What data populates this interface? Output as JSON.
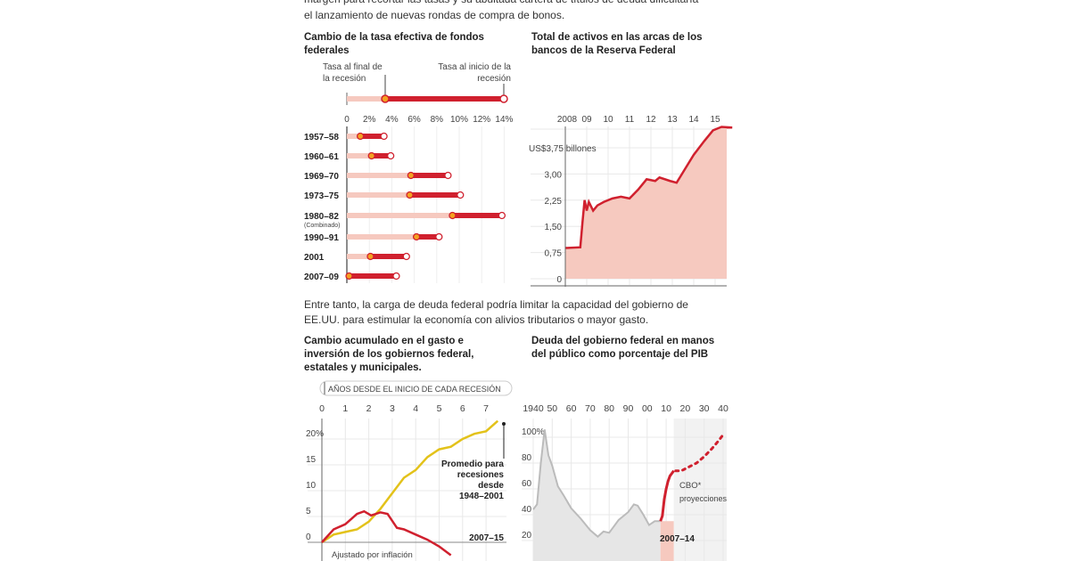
{
  "intro": {
    "line1": "margen para recortar las tasas y su abultada cartera de títulos de deuda dificultaría",
    "line2": "el lanzamiento de nuevas rondas de compra de bonos."
  },
  "middle": {
    "line1": "Entre tanto, la carga de deuda federal podría limitar la capacidad del gobierno de",
    "line2": "EE.UU. para estimular la economía con alivios tributarios o mayor gasto."
  },
  "colors": {
    "red": "#d0202e",
    "pink": "#f6c9bf",
    "gray": "#e6e6e6",
    "yellow": "#e3c21a"
  },
  "chart_data": [
    {
      "type": "dumbbell",
      "title": "Cambio de la tasa efectiva de fondos federales",
      "legend": {
        "end_label": "Tasa al final de la recesión",
        "start_label": "Tasa al inicio de la recesión"
      },
      "xticks": [
        "0",
        "2%",
        "4%",
        "6%",
        "8%",
        "10%",
        "12%",
        "14%"
      ],
      "xlim": [
        0,
        14
      ],
      "rows": [
        {
          "label": "1957–58",
          "end": 1.2,
          "start": 3.3
        },
        {
          "label": "1960–61",
          "end": 2.2,
          "start": 3.9
        },
        {
          "label": "1969–70",
          "end": 5.7,
          "start": 9.0
        },
        {
          "label": "1973–75",
          "end": 5.6,
          "start": 10.1
        },
        {
          "label": "1980–82",
          "sublabel": "(Combinado)",
          "end": 9.4,
          "start": 13.8
        },
        {
          "label": "1990–91",
          "end": 6.2,
          "start": 8.2
        },
        {
          "label": "2001",
          "end": 2.1,
          "start": 5.3
        },
        {
          "label": "2007–09",
          "end": 0.2,
          "start": 4.4
        }
      ]
    },
    {
      "type": "area",
      "title": "Total de activos en las arcas de los bancos de la Reserva Federal",
      "xticks": [
        "2008",
        "09",
        "10",
        "11",
        "12",
        "13",
        "14",
        "15"
      ],
      "yticks": [
        "0",
        "0,75",
        "1,50",
        "2,25",
        "3,00",
        "US$3,75 billones"
      ],
      "ylim": [
        0,
        4.3
      ],
      "x": [
        2008.0,
        2008.7,
        2008.8,
        2008.9,
        2009.0,
        2009.1,
        2009.3,
        2009.5,
        2009.8,
        2010.2,
        2010.6,
        2011.0,
        2011.4,
        2011.8,
        2012.2,
        2012.4,
        2012.9,
        2013.2,
        2013.6,
        2014.0,
        2014.5,
        2014.9,
        2015.3,
        2015.8
      ],
      "y": [
        0.88,
        0.9,
        1.6,
        2.25,
        1.95,
        2.2,
        1.95,
        2.1,
        2.2,
        2.3,
        2.35,
        2.3,
        2.55,
        2.85,
        2.8,
        2.9,
        2.8,
        2.75,
        3.15,
        3.55,
        3.95,
        4.25,
        4.35,
        4.33
      ]
    },
    {
      "type": "line",
      "title": "Cambio acumulado en el gasto e inversión de los gobiernos federal, estatales y municipales.",
      "xlabel": "AÑOS DESDE EL INICIO DE CADA RECESIÓN",
      "xticks": [
        "0",
        "1",
        "2",
        "3",
        "4",
        "5",
        "6",
        "7"
      ],
      "yticks": [
        "0",
        "5",
        "10",
        "15",
        "20%"
      ],
      "ylim": [
        -2,
        24
      ],
      "note": "Ajustado por inflación",
      "series": [
        {
          "name": "Promedio para recesiones desde 1948–2001",
          "color": "#e3c21a",
          "x": [
            0,
            0.5,
            1,
            1.5,
            2,
            2.5,
            3,
            3.5,
            4,
            4.5,
            5,
            5.5,
            6,
            6.5,
            7,
            7.5
          ],
          "y": [
            0,
            1.5,
            2,
            2.5,
            4,
            6.5,
            9.5,
            12.5,
            14,
            16.5,
            18,
            18.5,
            20,
            21,
            21.5,
            23.5
          ]
        },
        {
          "name": "2007–15",
          "color": "#d0202e",
          "x": [
            0,
            0.5,
            1,
            1.5,
            1.8,
            2.1,
            2.5,
            2.8,
            3.2,
            3.5,
            4,
            4.5,
            5,
            5.5
          ],
          "y": [
            0,
            2.5,
            3.5,
            5.5,
            6,
            5.2,
            5.8,
            5.5,
            2.8,
            2.5,
            1.5,
            0.5,
            -0.8,
            -2.5
          ]
        }
      ]
    },
    {
      "type": "area",
      "title": "Deuda del gobierno federal en manos del público como porcentaje del PIB",
      "xticks": [
        "1940",
        "50",
        "60",
        "70",
        "80",
        "90",
        "00",
        "10",
        "20",
        "30",
        "40"
      ],
      "yticks": [
        "20",
        "40",
        "60",
        "80",
        "100%"
      ],
      "ylim": [
        10,
        110
      ],
      "historical": {
        "x": [
          1940,
          1942,
          1944,
          1946,
          1948,
          1950,
          1953,
          1956,
          1960,
          1965,
          1970,
          1974,
          1977,
          1980,
          1985,
          1990,
          1993,
          1995,
          1998,
          2001,
          2004,
          2007
        ],
        "y": [
          44,
          48,
          80,
          106,
          86,
          78,
          62,
          55,
          45,
          37,
          28,
          23,
          27,
          26,
          36,
          42,
          48,
          47,
          40,
          32,
          35,
          35
        ]
      },
      "recent": {
        "label": "2007–14",
        "x": [
          2007,
          2008,
          2009,
          2010,
          2011,
          2012,
          2013,
          2014
        ],
        "y": [
          35,
          39,
          52,
          60,
          66,
          70,
          72,
          74
        ]
      },
      "projection": {
        "label": "CBO* proyecciones",
        "x": [
          2015,
          2018,
          2022,
          2026,
          2030,
          2034,
          2038,
          2040
        ],
        "y": [
          74,
          74,
          77,
          80,
          85,
          91,
          98,
          102
        ]
      }
    }
  ]
}
